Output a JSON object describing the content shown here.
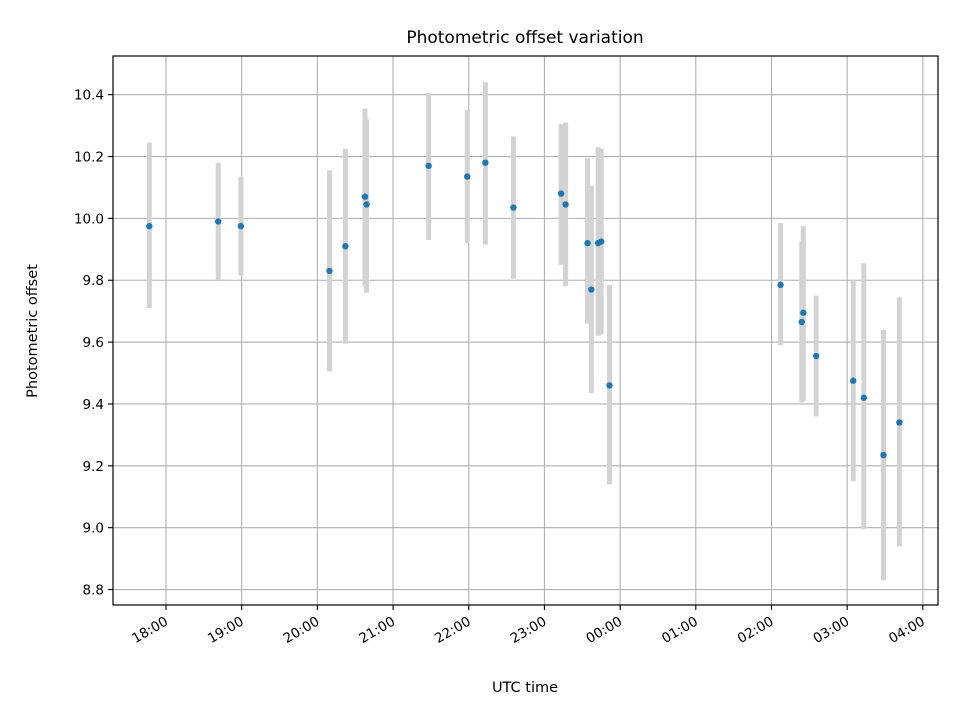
{
  "chart_data": {
    "type": "scatter",
    "title": "Photometric offset variation",
    "xlabel": "UTC time",
    "ylabel": "Photometric offset",
    "grid": true,
    "x_axis": {
      "unit": "hours",
      "ticks": [
        0,
        1,
        2,
        3,
        4,
        5,
        6,
        7,
        8,
        9,
        10
      ],
      "tick_labels": [
        "18:00",
        "19:00",
        "20:00",
        "21:00",
        "22:00",
        "23:00",
        "00:00",
        "01:00",
        "02:00",
        "03:00",
        "04:00"
      ],
      "xlim": [
        -0.7,
        10.2
      ]
    },
    "y_axis": {
      "ticks": [
        8.8,
        9.0,
        9.2,
        9.4,
        9.6,
        9.8,
        10.0,
        10.2,
        10.4
      ],
      "tick_labels": [
        "8.8",
        "9.0",
        "9.2",
        "9.4",
        "9.6",
        "9.8",
        "10.0",
        "10.2",
        "10.4"
      ],
      "ylim": [
        8.75,
        10.525
      ]
    },
    "colors": {
      "marker": "#1f77b4",
      "errorbar": "#d3d3d3",
      "grid": "#b0b0b0"
    },
    "points": [
      {
        "time": "17:47",
        "x": -0.22,
        "y": 9.975,
        "yerr_low": 9.71,
        "yerr_high": 10.245
      },
      {
        "time": "18:41",
        "x": 0.69,
        "y": 9.99,
        "yerr_low": 9.8,
        "yerr_high": 10.18
      },
      {
        "time": "18:59",
        "x": 0.99,
        "y": 9.975,
        "yerr_low": 9.815,
        "yerr_high": 10.135
      },
      {
        "time": "20:09",
        "x": 2.16,
        "y": 9.83,
        "yerr_low": 9.505,
        "yerr_high": 10.155
      },
      {
        "time": "20:22",
        "x": 2.37,
        "y": 9.91,
        "yerr_low": 9.595,
        "yerr_high": 10.225
      },
      {
        "time": "20:38",
        "x": 2.63,
        "y": 10.07,
        "yerr_low": 9.78,
        "yerr_high": 10.355
      },
      {
        "time": "20:39",
        "x": 2.65,
        "y": 10.045,
        "yerr_low": 9.76,
        "yerr_high": 10.32
      },
      {
        "time": "21:28",
        "x": 3.47,
        "y": 10.17,
        "yerr_low": 9.93,
        "yerr_high": 10.405
      },
      {
        "time": "21:59",
        "x": 3.98,
        "y": 10.135,
        "yerr_low": 9.92,
        "yerr_high": 10.35
      },
      {
        "time": "22:13",
        "x": 4.22,
        "y": 10.18,
        "yerr_low": 9.915,
        "yerr_high": 10.44
      },
      {
        "time": "22:35",
        "x": 4.59,
        "y": 10.035,
        "yerr_low": 9.805,
        "yerr_high": 10.265
      },
      {
        "time": "23:13",
        "x": 5.22,
        "y": 10.08,
        "yerr_low": 9.85,
        "yerr_high": 10.305
      },
      {
        "time": "23:17",
        "x": 5.28,
        "y": 10.045,
        "yerr_low": 9.78,
        "yerr_high": 10.31
      },
      {
        "time": "23:34",
        "x": 5.57,
        "y": 9.92,
        "yerr_low": 9.66,
        "yerr_high": 10.195
      },
      {
        "time": "23:37",
        "x": 5.62,
        "y": 9.77,
        "yerr_low": 9.435,
        "yerr_high": 10.105
      },
      {
        "time": "23:43",
        "x": 5.71,
        "y": 9.92,
        "yerr_low": 9.62,
        "yerr_high": 10.23
      },
      {
        "time": "23:45",
        "x": 5.75,
        "y": 9.925,
        "yerr_low": 9.625,
        "yerr_high": 10.225
      },
      {
        "time": "23:51",
        "x": 5.86,
        "y": 9.46,
        "yerr_low": 9.14,
        "yerr_high": 9.785
      },
      {
        "time": "02:07",
        "x": 8.12,
        "y": 9.785,
        "yerr_low": 9.59,
        "yerr_high": 9.985
      },
      {
        "time": "02:24",
        "x": 8.4,
        "y": 9.665,
        "yerr_low": 9.405,
        "yerr_high": 9.925
      },
      {
        "time": "02:25",
        "x": 8.42,
        "y": 9.695,
        "yerr_low": 9.41,
        "yerr_high": 9.975
      },
      {
        "time": "02:35",
        "x": 8.59,
        "y": 9.555,
        "yerr_low": 9.36,
        "yerr_high": 9.75
      },
      {
        "time": "03:05",
        "x": 9.08,
        "y": 9.475,
        "yerr_low": 9.15,
        "yerr_high": 9.8
      },
      {
        "time": "03:13",
        "x": 9.22,
        "y": 9.42,
        "yerr_low": 8.995,
        "yerr_high": 9.855
      },
      {
        "time": "03:29",
        "x": 9.48,
        "y": 9.235,
        "yerr_low": 8.83,
        "yerr_high": 9.64
      },
      {
        "time": "03:41",
        "x": 9.69,
        "y": 9.34,
        "yerr_low": 8.94,
        "yerr_high": 9.745
      }
    ]
  }
}
